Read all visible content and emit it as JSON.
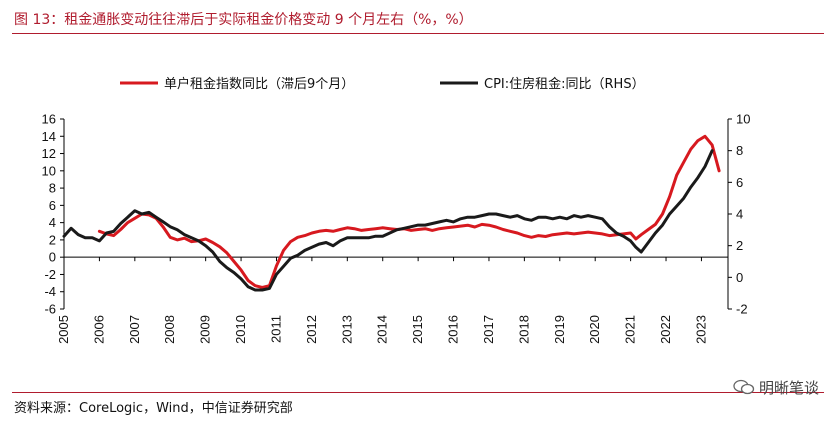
{
  "header": {
    "title": "图 13：租金通胀变动往往滞后于实际租金价格变动 9 个月左右（%，%）"
  },
  "footer": {
    "source": "资料来源：CoreLogic，Wind，中信证券研究部",
    "watermark": "明晰笔谈"
  },
  "colors": {
    "brand": "#b01c2e",
    "series_red": "#d7191f",
    "series_black": "#1a1a1a"
  },
  "chart_data": {
    "type": "line",
    "title": "",
    "xlabel": "",
    "ylabel": "",
    "x_ticks": [
      "2005",
      "2006",
      "2007",
      "2008",
      "2009",
      "2010",
      "2011",
      "2012",
      "2013",
      "2014",
      "2015",
      "2016",
      "2017",
      "2018",
      "2019",
      "2020",
      "2021",
      "2022",
      "2023"
    ],
    "xlim": [
      2005,
      2023.75
    ],
    "y_left": {
      "ylim": [
        -6,
        16
      ],
      "ticks": [
        "16",
        "14",
        "12",
        "10",
        "8",
        "6",
        "4",
        "2",
        "0",
        "-2",
        "-4",
        "-6"
      ]
    },
    "y_right": {
      "ylim": [
        -2,
        10
      ],
      "ticks": [
        "10",
        "8",
        "6",
        "4",
        "2",
        "0",
        "-2"
      ]
    },
    "legend": {
      "placement": "top"
    },
    "series": [
      {
        "name": "单户租金指数同比（滞后9个月）",
        "axis": "left",
        "color": "#d7191f",
        "points": [
          [
            2006.0,
            3.0
          ],
          [
            2006.2,
            2.7
          ],
          [
            2006.4,
            2.5
          ],
          [
            2006.6,
            3.2
          ],
          [
            2006.8,
            4.0
          ],
          [
            2007.0,
            4.5
          ],
          [
            2007.2,
            5.0
          ],
          [
            2007.4,
            4.9
          ],
          [
            2007.6,
            4.5
          ],
          [
            2007.8,
            3.5
          ],
          [
            2008.0,
            2.3
          ],
          [
            2008.2,
            2.0
          ],
          [
            2008.4,
            2.2
          ],
          [
            2008.6,
            1.8
          ],
          [
            2008.8,
            1.9
          ],
          [
            2009.0,
            2.1
          ],
          [
            2009.2,
            1.7
          ],
          [
            2009.4,
            1.2
          ],
          [
            2009.6,
            0.5
          ],
          [
            2009.8,
            -0.5
          ],
          [
            2010.0,
            -1.5
          ],
          [
            2010.2,
            -2.7
          ],
          [
            2010.4,
            -3.3
          ],
          [
            2010.6,
            -3.5
          ],
          [
            2010.8,
            -3.3
          ],
          [
            2011.0,
            -1.0
          ],
          [
            2011.2,
            0.8
          ],
          [
            2011.4,
            1.8
          ],
          [
            2011.6,
            2.3
          ],
          [
            2011.8,
            2.5
          ],
          [
            2012.0,
            2.8
          ],
          [
            2012.2,
            3.0
          ],
          [
            2012.4,
            3.1
          ],
          [
            2012.6,
            3.0
          ],
          [
            2012.8,
            3.2
          ],
          [
            2013.0,
            3.4
          ],
          [
            2013.2,
            3.3
          ],
          [
            2013.4,
            3.1
          ],
          [
            2013.6,
            3.2
          ],
          [
            2013.8,
            3.3
          ],
          [
            2014.0,
            3.4
          ],
          [
            2014.2,
            3.3
          ],
          [
            2014.4,
            3.2
          ],
          [
            2014.6,
            3.3
          ],
          [
            2014.8,
            3.1
          ],
          [
            2015.0,
            3.2
          ],
          [
            2015.2,
            3.3
          ],
          [
            2015.4,
            3.1
          ],
          [
            2015.6,
            3.3
          ],
          [
            2015.8,
            3.4
          ],
          [
            2016.0,
            3.5
          ],
          [
            2016.2,
            3.6
          ],
          [
            2016.4,
            3.7
          ],
          [
            2016.6,
            3.5
          ],
          [
            2016.8,
            3.8
          ],
          [
            2017.0,
            3.7
          ],
          [
            2017.2,
            3.5
          ],
          [
            2017.4,
            3.2
          ],
          [
            2017.6,
            3.0
          ],
          [
            2017.8,
            2.8
          ],
          [
            2018.0,
            2.5
          ],
          [
            2018.2,
            2.3
          ],
          [
            2018.4,
            2.5
          ],
          [
            2018.6,
            2.4
          ],
          [
            2018.8,
            2.6
          ],
          [
            2019.0,
            2.7
          ],
          [
            2019.2,
            2.8
          ],
          [
            2019.4,
            2.7
          ],
          [
            2019.6,
            2.8
          ],
          [
            2019.8,
            2.9
          ],
          [
            2020.0,
            2.8
          ],
          [
            2020.2,
            2.7
          ],
          [
            2020.4,
            2.5
          ],
          [
            2020.6,
            2.6
          ],
          [
            2020.8,
            2.7
          ],
          [
            2021.0,
            2.8
          ],
          [
            2021.15,
            2.1
          ],
          [
            2021.3,
            2.6
          ],
          [
            2021.5,
            3.2
          ],
          [
            2021.7,
            3.8
          ],
          [
            2021.9,
            5.0
          ],
          [
            2022.1,
            7.0
          ],
          [
            2022.3,
            9.5
          ],
          [
            2022.5,
            11.0
          ],
          [
            2022.7,
            12.5
          ],
          [
            2022.9,
            13.5
          ],
          [
            2023.1,
            14.0
          ],
          [
            2023.3,
            13.0
          ],
          [
            2023.5,
            10.0
          ]
        ]
      },
      {
        "name": "CPI:住房租金:同比（RHS）",
        "axis": "right",
        "color": "#1a1a1a",
        "points": [
          [
            2005.0,
            2.6
          ],
          [
            2005.2,
            3.1
          ],
          [
            2005.4,
            2.7
          ],
          [
            2005.6,
            2.5
          ],
          [
            2005.8,
            2.5
          ],
          [
            2006.0,
            2.3
          ],
          [
            2006.2,
            2.8
          ],
          [
            2006.4,
            2.9
          ],
          [
            2006.6,
            3.4
          ],
          [
            2006.8,
            3.8
          ],
          [
            2007.0,
            4.2
          ],
          [
            2007.2,
            4.0
          ],
          [
            2007.4,
            4.1
          ],
          [
            2007.6,
            3.8
          ],
          [
            2007.8,
            3.5
          ],
          [
            2008.0,
            3.2
          ],
          [
            2008.2,
            3.0
          ],
          [
            2008.4,
            2.7
          ],
          [
            2008.6,
            2.5
          ],
          [
            2008.8,
            2.3
          ],
          [
            2009.0,
            2.0
          ],
          [
            2009.2,
            1.6
          ],
          [
            2009.4,
            1.0
          ],
          [
            2009.6,
            0.6
          ],
          [
            2009.8,
            0.3
          ],
          [
            2010.0,
            -0.1
          ],
          [
            2010.2,
            -0.6
          ],
          [
            2010.4,
            -0.8
          ],
          [
            2010.6,
            -0.8
          ],
          [
            2010.8,
            -0.7
          ],
          [
            2011.0,
            0.2
          ],
          [
            2011.2,
            0.7
          ],
          [
            2011.4,
            1.2
          ],
          [
            2011.6,
            1.4
          ],
          [
            2011.8,
            1.7
          ],
          [
            2012.0,
            1.9
          ],
          [
            2012.2,
            2.1
          ],
          [
            2012.4,
            2.2
          ],
          [
            2012.6,
            2.0
          ],
          [
            2012.8,
            2.3
          ],
          [
            2013.0,
            2.5
          ],
          [
            2013.2,
            2.5
          ],
          [
            2013.4,
            2.5
          ],
          [
            2013.6,
            2.5
          ],
          [
            2013.8,
            2.6
          ],
          [
            2014.0,
            2.6
          ],
          [
            2014.2,
            2.8
          ],
          [
            2014.4,
            3.0
          ],
          [
            2014.6,
            3.1
          ],
          [
            2014.8,
            3.2
          ],
          [
            2015.0,
            3.3
          ],
          [
            2015.2,
            3.3
          ],
          [
            2015.4,
            3.4
          ],
          [
            2015.6,
            3.5
          ],
          [
            2015.8,
            3.6
          ],
          [
            2016.0,
            3.5
          ],
          [
            2016.2,
            3.7
          ],
          [
            2016.4,
            3.8
          ],
          [
            2016.6,
            3.8
          ],
          [
            2016.8,
            3.9
          ],
          [
            2017.0,
            4.0
          ],
          [
            2017.2,
            4.0
          ],
          [
            2017.4,
            3.9
          ],
          [
            2017.6,
            3.8
          ],
          [
            2017.8,
            3.9
          ],
          [
            2018.0,
            3.7
          ],
          [
            2018.2,
            3.6
          ],
          [
            2018.4,
            3.8
          ],
          [
            2018.6,
            3.8
          ],
          [
            2018.8,
            3.7
          ],
          [
            2019.0,
            3.8
          ],
          [
            2019.2,
            3.7
          ],
          [
            2019.4,
            3.9
          ],
          [
            2019.6,
            3.8
          ],
          [
            2019.8,
            3.9
          ],
          [
            2020.0,
            3.8
          ],
          [
            2020.2,
            3.7
          ],
          [
            2020.4,
            3.2
          ],
          [
            2020.6,
            2.8
          ],
          [
            2020.8,
            2.6
          ],
          [
            2021.0,
            2.3
          ],
          [
            2021.15,
            1.9
          ],
          [
            2021.3,
            1.6
          ],
          [
            2021.5,
            2.2
          ],
          [
            2021.7,
            2.8
          ],
          [
            2021.9,
            3.3
          ],
          [
            2022.1,
            4.0
          ],
          [
            2022.3,
            4.5
          ],
          [
            2022.5,
            5.0
          ],
          [
            2022.7,
            5.7
          ],
          [
            2022.9,
            6.3
          ],
          [
            2023.1,
            7.0
          ],
          [
            2023.3,
            8.0
          ]
        ]
      }
    ]
  }
}
